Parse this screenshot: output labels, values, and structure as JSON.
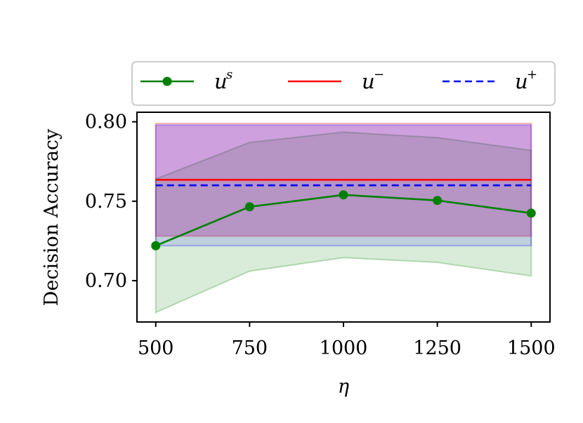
{
  "chart_data": {
    "type": "line",
    "title": "",
    "xlabel": "η",
    "ylabel": "Decision Accuracy",
    "x": [
      500,
      750,
      1000,
      1250,
      1500
    ],
    "xticks": [
      "500",
      "750",
      "1000",
      "1250",
      "1500"
    ],
    "yticks": [
      "0.70",
      "0.75",
      "0.80"
    ],
    "xlim": [
      450,
      1550
    ],
    "ylim": [
      0.674,
      0.806
    ],
    "grid": false,
    "legend_position": "top",
    "series": [
      {
        "name": "u^s",
        "label_base": "u",
        "label_sup": "s",
        "color": "#008000",
        "style": "solid",
        "marker": "circle",
        "values": [
          0.722,
          0.7465,
          0.754,
          0.7505,
          0.7425
        ],
        "band_lower": [
          0.68,
          0.706,
          0.7145,
          0.7115,
          0.703
        ],
        "band_upper": [
          0.764,
          0.787,
          0.7935,
          0.79,
          0.782
        ],
        "band_color": "#008000"
      },
      {
        "name": "u^−",
        "label_base": "u",
        "label_sup": "−",
        "color": "#ff0000",
        "style": "solid",
        "marker": "none",
        "values": [
          0.7635,
          0.7635,
          0.7635,
          0.7635,
          0.7635
        ],
        "band_lower": [
          0.728,
          0.728,
          0.728,
          0.728,
          0.728
        ],
        "band_upper": [
          0.799,
          0.799,
          0.799,
          0.799,
          0.799
        ],
        "band_color": "#ff0000"
      },
      {
        "name": "u^+",
        "label_base": "u",
        "label_sup": "+",
        "color": "#0000ff",
        "style": "dashed",
        "marker": "none",
        "values": [
          0.76,
          0.76,
          0.76,
          0.76,
          0.76
        ],
        "band_lower": [
          0.722,
          0.722,
          0.722,
          0.722,
          0.722
        ],
        "band_upper": [
          0.798,
          0.798,
          0.798,
          0.798,
          0.798
        ],
        "band_color": "#0000ff"
      }
    ],
    "band_overlay": {
      "color": "#8000c0",
      "upper": 0.798,
      "lower": 0.728
    }
  }
}
